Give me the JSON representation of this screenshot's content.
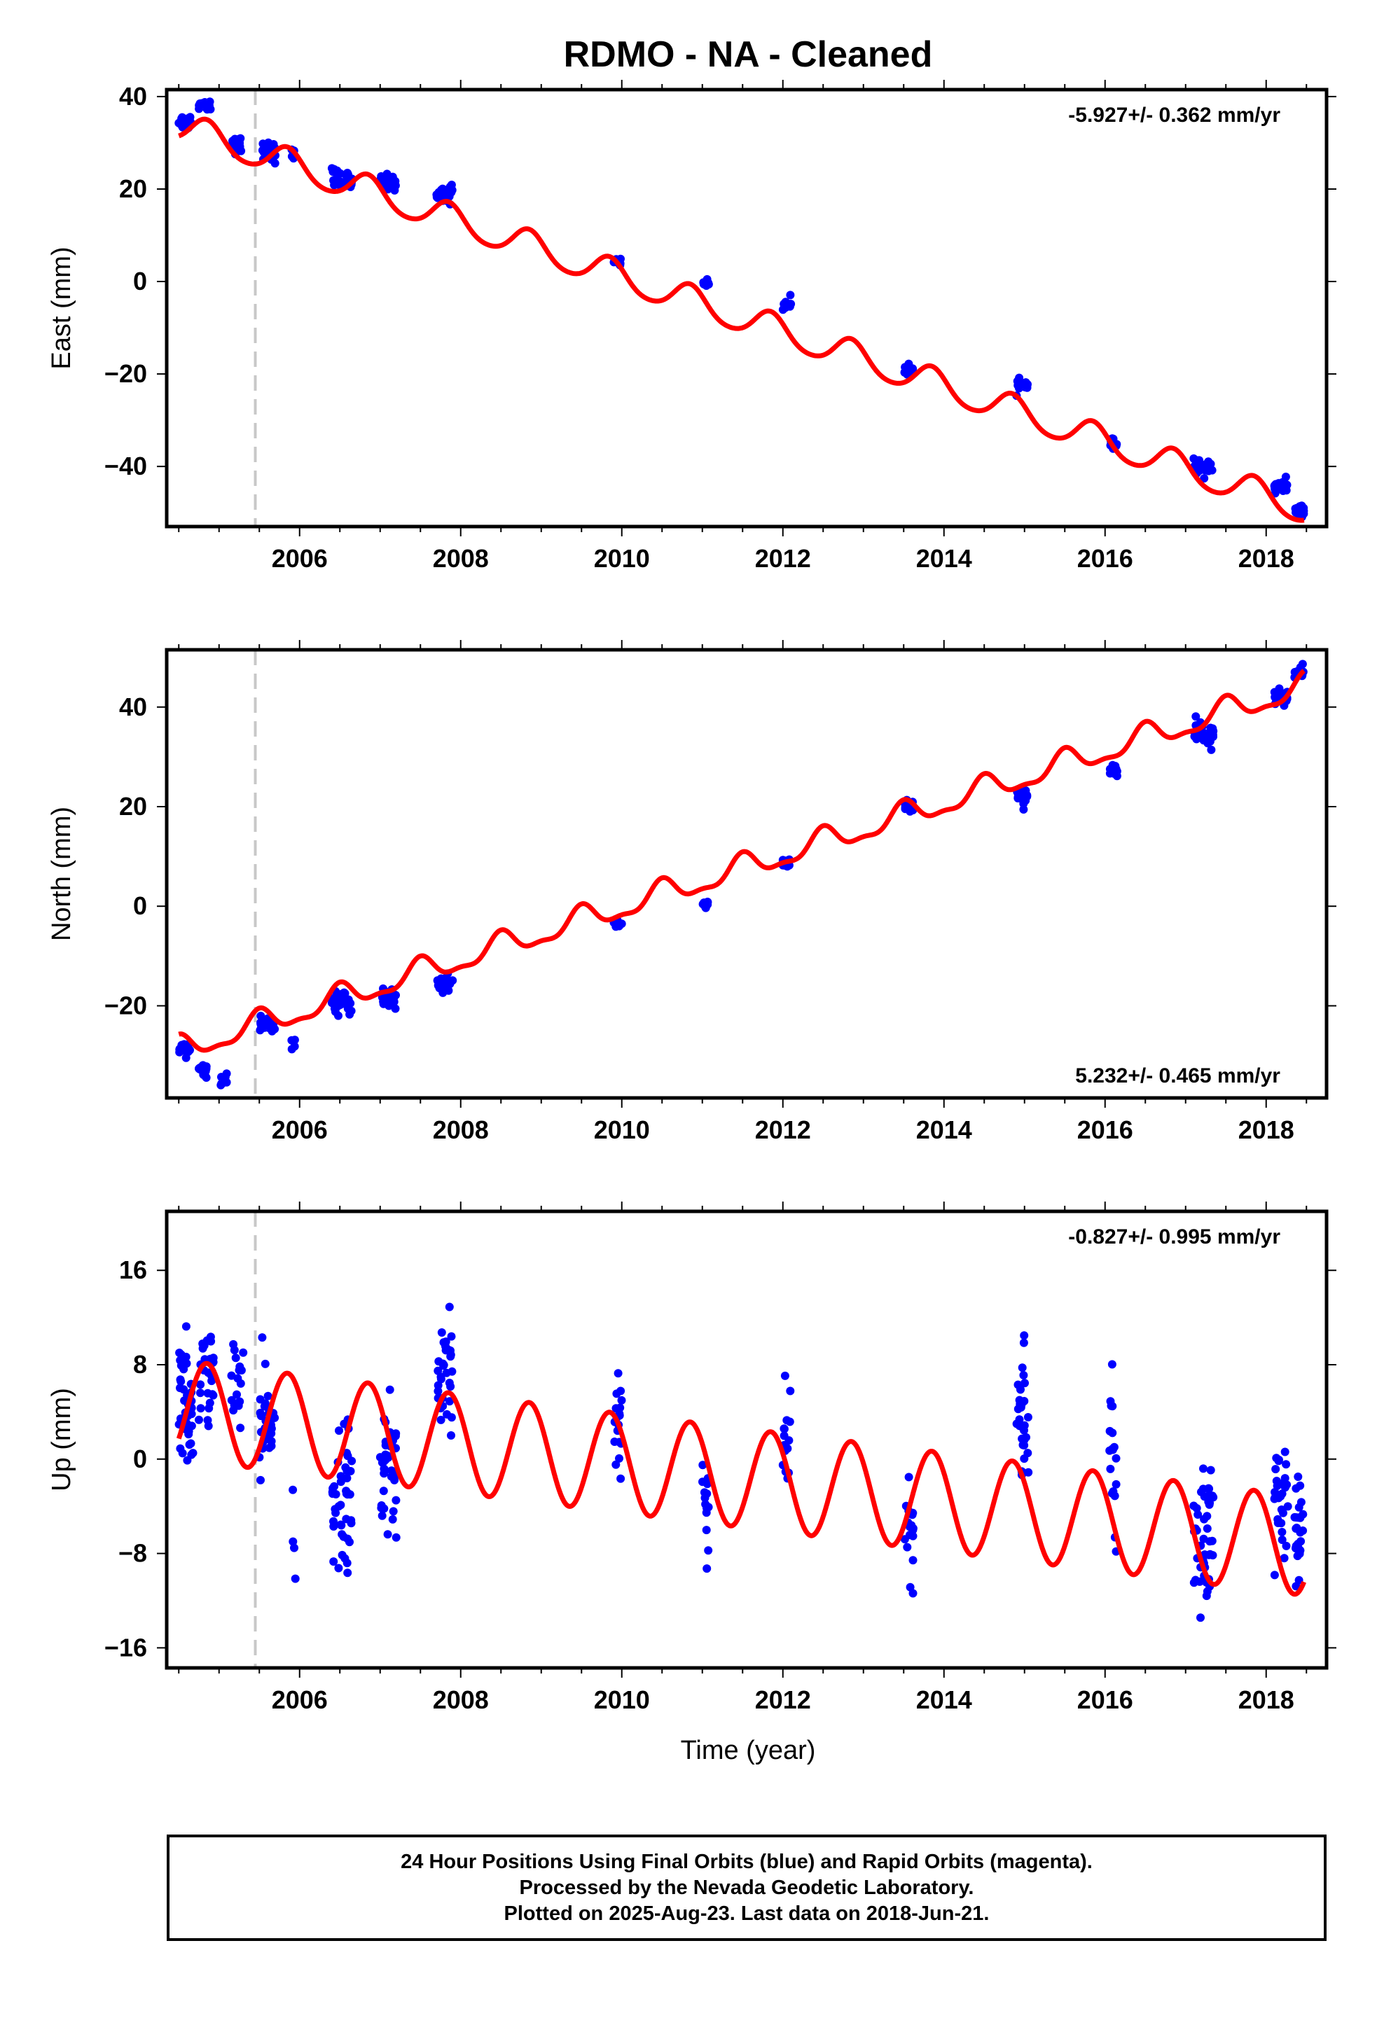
{
  "title": "RDMO  - NA - Cleaned",
  "xlabel": "Time (year)",
  "colors": {
    "data": "#0000ff",
    "model": "#ff0000",
    "offset": "#c8c8c8",
    "frame": "#000000"
  },
  "caption": [
    "24 Hour Positions Using Final Orbits (blue) and Rapid Orbits (magenta).",
    "Processed by the Nevada Geodetic Laboratory.",
    "Plotted on 2025-Aug-23. Last data on 2018-Jun-21."
  ],
  "chart_data": [
    {
      "type": "scatter",
      "name": "east",
      "title": "RDMO  - NA - Cleaned",
      "ylabel": "East (mm)",
      "xlim": [
        2004.35,
        2018.75
      ],
      "ylim": [
        -53,
        41.5
      ],
      "xticks": [
        2006,
        2008,
        2010,
        2012,
        2014,
        2016,
        2018
      ],
      "xtick_labels": [
        "2006",
        "2008",
        "2010",
        "2012",
        "2014",
        "2016",
        "2018"
      ],
      "yticks": [
        40,
        20,
        0,
        -20,
        -40
      ],
      "ytick_labels": [
        "40",
        "20",
        "0",
        "−20",
        "−40"
      ],
      "rate_label": "-5.927+/- 0.362 mm/yr",
      "rate_position": "top-right",
      "offset_lines": [
        2005.45
      ],
      "model": {
        "name": "model fit",
        "trend_rate": -5.927,
        "intercept_at_2004_5": 33.5,
        "annual_amplitude": 3.2,
        "annual_phase_year": 2004.85,
        "semiannual_amplitude": 0.4,
        "semiannual_phase_year": 2004.85
      },
      "clusters": [
        {
          "x_start": 2004.5,
          "x_end": 2004.65,
          "y_center": 34.5,
          "y_spread": 1.8,
          "count": 26
        },
        {
          "x_start": 2004.75,
          "x_end": 2004.9,
          "y_center": 38.3,
          "y_spread": 1.3,
          "count": 20
        },
        {
          "x_start": 2005.15,
          "x_end": 2005.3,
          "y_center": 29.5,
          "y_spread": 1.8,
          "count": 20
        },
        {
          "x_start": 2005.5,
          "x_end": 2005.7,
          "y_center": 28.0,
          "y_spread": 2.4,
          "count": 24
        },
        {
          "x_start": 2005.9,
          "x_end": 2005.95,
          "y_center": 28.0,
          "y_spread": 3.5,
          "count": 4
        },
        {
          "x_start": 2006.4,
          "x_end": 2006.65,
          "y_center": 22.0,
          "y_spread": 2.6,
          "count": 30
        },
        {
          "x_start": 2007.0,
          "x_end": 2007.2,
          "y_center": 21.5,
          "y_spread": 1.8,
          "count": 22
        },
        {
          "x_start": 2007.7,
          "x_end": 2007.9,
          "y_center": 19.0,
          "y_spread": 2.2,
          "count": 24
        },
        {
          "x_start": 2009.9,
          "x_end": 2010.0,
          "y_center": 4.5,
          "y_spread": 1.2,
          "count": 12
        },
        {
          "x_start": 2011.0,
          "x_end": 2011.08,
          "y_center": -0.5,
          "y_spread": 1.0,
          "count": 10
        },
        {
          "x_start": 2012.0,
          "x_end": 2012.1,
          "y_center": -5.0,
          "y_spread": 1.6,
          "count": 12
        },
        {
          "x_start": 2013.5,
          "x_end": 2013.62,
          "y_center": -19.0,
          "y_spread": 1.4,
          "count": 14
        },
        {
          "x_start": 2014.9,
          "x_end": 2015.05,
          "y_center": -22.5,
          "y_spread": 1.4,
          "count": 16
        },
        {
          "x_start": 2016.05,
          "x_end": 2016.15,
          "y_center": -34.5,
          "y_spread": 1.5,
          "count": 12
        },
        {
          "x_start": 2017.1,
          "x_end": 2017.35,
          "y_center": -40.5,
          "y_spread": 1.8,
          "count": 30
        },
        {
          "x_start": 2018.1,
          "x_end": 2018.27,
          "y_center": -44.5,
          "y_spread": 1.8,
          "count": 24
        },
        {
          "x_start": 2018.35,
          "x_end": 2018.47,
          "y_center": -49.5,
          "y_spread": 1.3,
          "count": 18
        }
      ]
    },
    {
      "type": "scatter",
      "name": "north",
      "ylabel": "North (mm)",
      "xlim": [
        2004.35,
        2018.75
      ],
      "ylim": [
        -38.5,
        51.5
      ],
      "xticks": [
        2006,
        2008,
        2010,
        2012,
        2014,
        2016,
        2018
      ],
      "xtick_labels": [
        "2006",
        "2008",
        "2010",
        "2012",
        "2014",
        "2016",
        "2018"
      ],
      "yticks": [
        40,
        20,
        0,
        -20
      ],
      "ytick_labels": [
        "40",
        "20",
        "0",
        "−20"
      ],
      "rate_label": "5.232+/- 0.465 mm/yr",
      "rate_position": "bottom-right",
      "offset_lines": [
        2005.45
      ],
      "model": {
        "name": "model fit",
        "trend_rate": 5.232,
        "intercept_at_2004_5": -29.0,
        "annual_amplitude": 2.4,
        "annual_phase_year": 2004.5,
        "semiannual_amplitude": 0.9,
        "semiannual_phase_year": 2004.5
      },
      "clusters": [
        {
          "x_start": 2004.5,
          "x_end": 2004.65,
          "y_center": -28.5,
          "y_spread": 1.5,
          "count": 20
        },
        {
          "x_start": 2004.75,
          "x_end": 2004.85,
          "y_center": -33.5,
          "y_spread": 2.0,
          "count": 14
        },
        {
          "x_start": 2005.0,
          "x_end": 2005.1,
          "y_center": -35.0,
          "y_spread": 2.0,
          "count": 10
        },
        {
          "x_start": 2005.5,
          "x_end": 2005.7,
          "y_center": -24.0,
          "y_spread": 2.0,
          "count": 22
        },
        {
          "x_start": 2005.9,
          "x_end": 2005.95,
          "y_center": -27.5,
          "y_spread": 1.5,
          "count": 4
        },
        {
          "x_start": 2006.4,
          "x_end": 2006.65,
          "y_center": -19.5,
          "y_spread": 2.3,
          "count": 30
        },
        {
          "x_start": 2007.0,
          "x_end": 2007.2,
          "y_center": -18.5,
          "y_spread": 1.8,
          "count": 22
        },
        {
          "x_start": 2007.7,
          "x_end": 2007.9,
          "y_center": -15.5,
          "y_spread": 2.3,
          "count": 24
        },
        {
          "x_start": 2009.9,
          "x_end": 2010.0,
          "y_center": -3.5,
          "y_spread": 1.2,
          "count": 12
        },
        {
          "x_start": 2011.0,
          "x_end": 2011.08,
          "y_center": 0.5,
          "y_spread": 1.5,
          "count": 10
        },
        {
          "x_start": 2012.0,
          "x_end": 2012.1,
          "y_center": 8.5,
          "y_spread": 1.4,
          "count": 12
        },
        {
          "x_start": 2013.5,
          "x_end": 2013.62,
          "y_center": 20.0,
          "y_spread": 1.4,
          "count": 14
        },
        {
          "x_start": 2014.9,
          "x_end": 2015.05,
          "y_center": 22.0,
          "y_spread": 2.0,
          "count": 16
        },
        {
          "x_start": 2016.05,
          "x_end": 2016.15,
          "y_center": 27.0,
          "y_spread": 2.0,
          "count": 12
        },
        {
          "x_start": 2017.1,
          "x_end": 2017.35,
          "y_center": 34.5,
          "y_spread": 2.6,
          "count": 30
        },
        {
          "x_start": 2018.1,
          "x_end": 2018.27,
          "y_center": 42.0,
          "y_spread": 1.6,
          "count": 24
        },
        {
          "x_start": 2018.35,
          "x_end": 2018.47,
          "y_center": 47.0,
          "y_spread": 1.5,
          "count": 18
        }
      ]
    },
    {
      "type": "scatter",
      "name": "up",
      "ylabel": "Up (mm)",
      "xlim": [
        2004.35,
        2018.75
      ],
      "ylim": [
        -17.7,
        21
      ],
      "xticks": [
        2006,
        2008,
        2010,
        2012,
        2014,
        2016,
        2018
      ],
      "xtick_labels": [
        "2006",
        "2008",
        "2010",
        "2012",
        "2014",
        "2016",
        "2018"
      ],
      "yticks": [
        16,
        8,
        0,
        -8,
        -16
      ],
      "ytick_labels": [
        "16",
        "8",
        "0",
        "−8",
        "−16"
      ],
      "rate_label": "-0.827+/- 0.995 mm/yr",
      "rate_position": "top-right",
      "offset_lines": [
        2005.45
      ],
      "model": {
        "name": "model fit",
        "trend_rate": -0.827,
        "intercept_at_2004_5": 4.2,
        "annual_amplitude": 4.2,
        "annual_phase_year": 2004.85,
        "semiannual_amplitude": 0.0,
        "semiannual_phase_year": 2004.85
      },
      "clusters": [
        {
          "x_start": 2004.5,
          "x_end": 2004.68,
          "y_center": 4.5,
          "y_spread": 6.0,
          "count": 40
        },
        {
          "x_start": 2004.75,
          "x_end": 2004.95,
          "y_center": 7.0,
          "y_spread": 4.5,
          "count": 30
        },
        {
          "x_start": 2005.15,
          "x_end": 2005.3,
          "y_center": 7.0,
          "y_spread": 4.0,
          "count": 18
        },
        {
          "x_start": 2005.5,
          "x_end": 2005.7,
          "y_center": 2.5,
          "y_spread": 5.5,
          "count": 30
        },
        {
          "x_start": 2005.9,
          "x_end": 2005.95,
          "y_center": -8.0,
          "y_spread": 8.0,
          "count": 4
        },
        {
          "x_start": 2006.4,
          "x_end": 2006.65,
          "y_center": -3.5,
          "y_spread": 6.5,
          "count": 45
        },
        {
          "x_start": 2007.0,
          "x_end": 2007.2,
          "y_center": -1.0,
          "y_spread": 6.0,
          "count": 40
        },
        {
          "x_start": 2007.7,
          "x_end": 2007.9,
          "y_center": 7.5,
          "y_spread": 7.0,
          "count": 35
        },
        {
          "x_start": 2009.9,
          "x_end": 2010.0,
          "y_center": 3.0,
          "y_spread": 6.0,
          "count": 18
        },
        {
          "x_start": 2011.0,
          "x_end": 2011.08,
          "y_center": -3.5,
          "y_spread": 4.5,
          "count": 14
        },
        {
          "x_start": 2012.0,
          "x_end": 2012.1,
          "y_center": 2.0,
          "y_spread": 6.0,
          "count": 16
        },
        {
          "x_start": 2013.5,
          "x_end": 2013.62,
          "y_center": -6.0,
          "y_spread": 6.0,
          "count": 18
        },
        {
          "x_start": 2014.9,
          "x_end": 2015.05,
          "y_center": 3.5,
          "y_spread": 6.5,
          "count": 30
        },
        {
          "x_start": 2016.05,
          "x_end": 2016.15,
          "y_center": 1.0,
          "y_spread": 7.5,
          "count": 18
        },
        {
          "x_start": 2017.1,
          "x_end": 2017.35,
          "y_center": -7.0,
          "y_spread": 7.5,
          "count": 50
        },
        {
          "x_start": 2018.1,
          "x_end": 2018.27,
          "y_center": -4.5,
          "y_spread": 6.5,
          "count": 30
        },
        {
          "x_start": 2018.35,
          "x_end": 2018.47,
          "y_center": -7.0,
          "y_spread": 5.5,
          "count": 26
        }
      ]
    }
  ]
}
